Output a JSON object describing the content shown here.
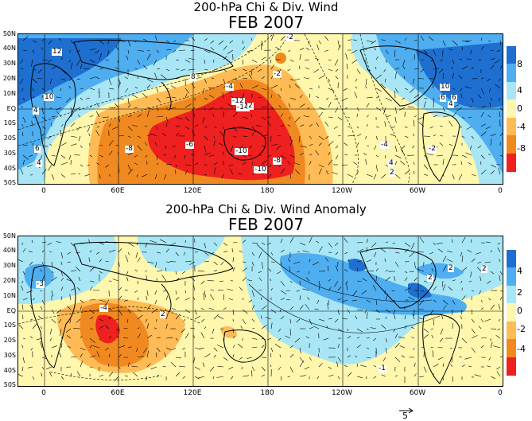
{
  "panels": [
    {
      "title": "200-hPa Chi & Div. Wind",
      "subtitle": "FEB 2007",
      "lat_labels": [
        "50N",
        "40N",
        "30N",
        "20N",
        "10N",
        "EQ",
        "10S",
        "20S",
        "30S",
        "40S",
        "50S"
      ],
      "lon_labels": [
        "0",
        "60E",
        "120E",
        "180",
        "120W",
        "60W",
        "0"
      ],
      "colorbar": {
        "colors": [
          "#1e6fd0",
          "#4eaef0",
          "#a8e6f5",
          "#fef7ad",
          "#ffbb55",
          "#f08a20",
          "#ee2020"
        ],
        "labels": [
          "8",
          "4",
          "0",
          "-4",
          "-8"
        ]
      },
      "contour_labels": [
        "12",
        "10",
        "4",
        "6",
        "4",
        "8",
        "-4",
        "-8",
        "-10",
        "-12",
        "-14",
        "-2",
        "-6",
        "-8",
        "-10",
        "2",
        "4",
        "-2",
        "-4",
        "10",
        "6",
        "4",
        "6",
        "2",
        "-2"
      ]
    },
    {
      "title": "200-hPa Chi & Div. Wind Anomaly",
      "subtitle": "FEB 2007",
      "lat_labels": [
        "50N",
        "40N",
        "30N",
        "20N",
        "10N",
        "EQ",
        "10S",
        "20S",
        "30S",
        "40S",
        "50S"
      ],
      "lon_labels": [
        "0",
        "60E",
        "120E",
        "180",
        "120W",
        "60W",
        "0"
      ],
      "colorbar": {
        "colors": [
          "#1e6fd0",
          "#4eaef0",
          "#a8e6f5",
          "#fef7ad",
          "#ffbb55",
          "#f08a20",
          "#ee2020"
        ],
        "labels": [
          "4",
          "2",
          "0",
          "-2",
          "-4"
        ]
      },
      "contour_labels": [
        "-3",
        "2",
        "-4",
        "2",
        "2",
        "-1",
        "2"
      ]
    }
  ],
  "vector_scale": {
    "label": "5"
  },
  "colors": {
    "frame": "#000000"
  }
}
